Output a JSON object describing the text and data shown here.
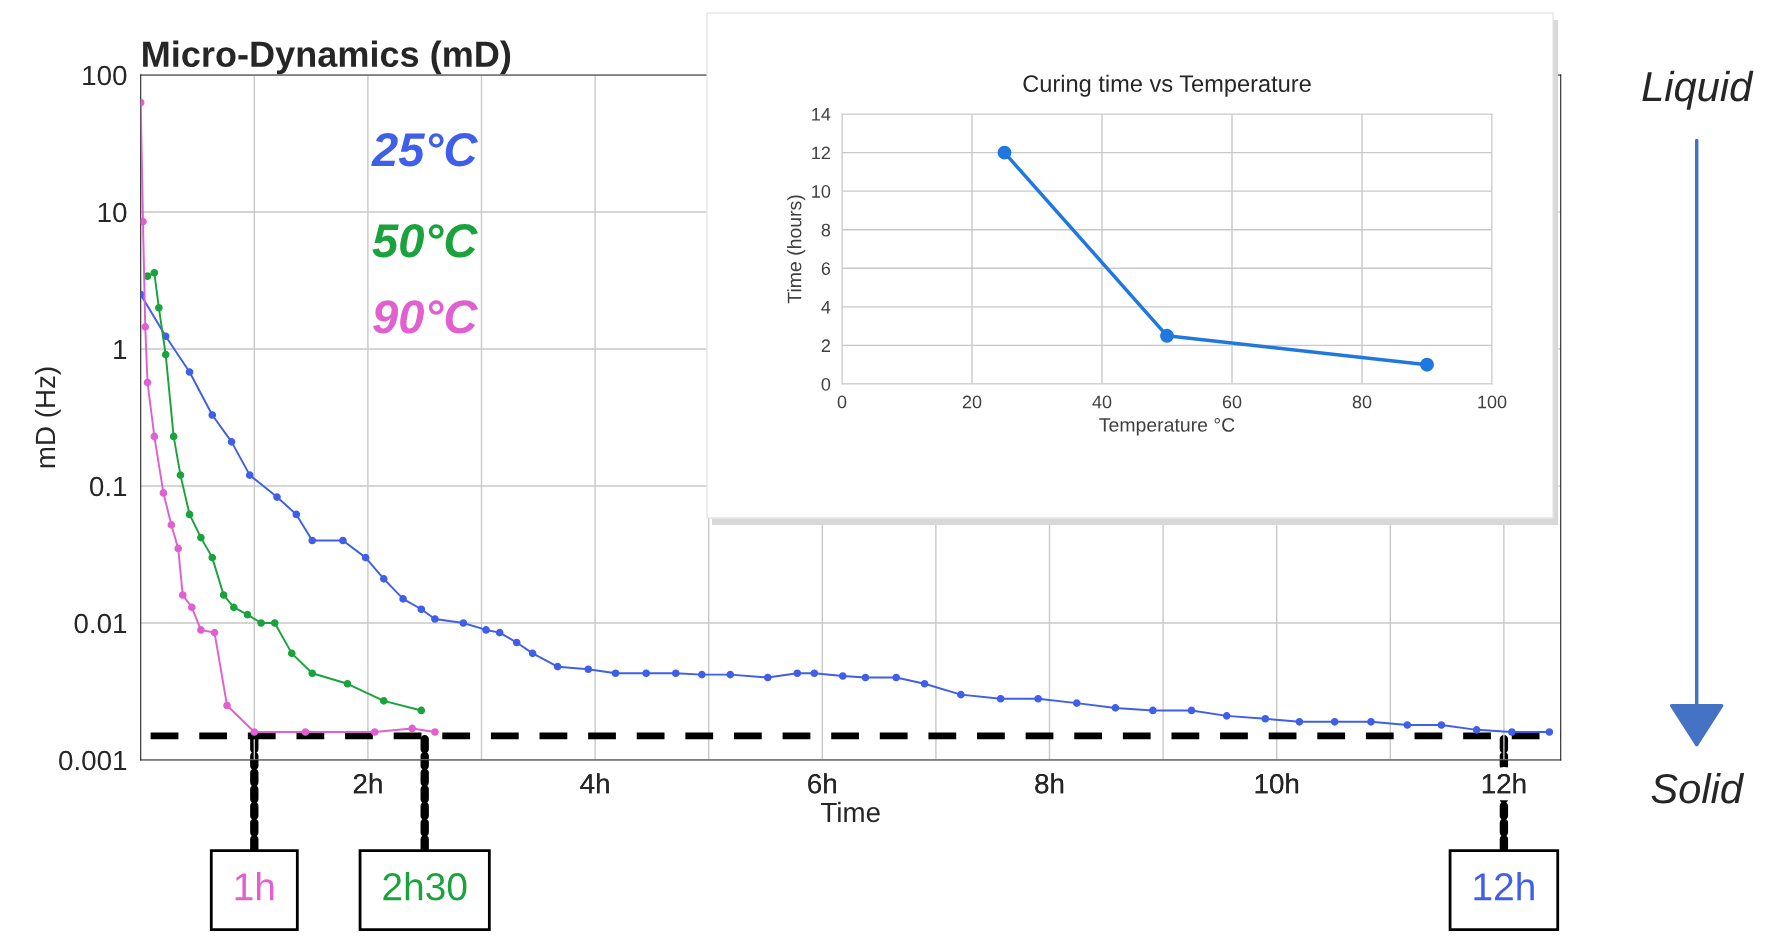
{
  "chart_data": [
    {
      "type": "line",
      "title": "Micro-Dynamics (mD)",
      "xlabel": "Time",
      "ylabel": "mD (Hz)",
      "log": "y",
      "xlim": [
        0,
        12.5
      ],
      "xticks": [
        {
          "value": 1,
          "label": null
        },
        {
          "value": 2,
          "label": "2h"
        },
        {
          "value": 3,
          "label": null
        },
        {
          "value": 4,
          "label": "4h"
        },
        {
          "value": 5,
          "label": null
        },
        {
          "value": 6,
          "label": "6h"
        },
        {
          "value": 7,
          "label": null
        },
        {
          "value": 8,
          "label": "8h"
        },
        {
          "value": 9,
          "label": null
        },
        {
          "value": 10,
          "label": "10h"
        },
        {
          "value": 11,
          "label": null
        },
        {
          "value": 12,
          "label": "12h"
        }
      ],
      "ylim": [
        0.001,
        100
      ],
      "yticks": [
        0.001,
        0.01,
        0.1,
        1,
        10,
        100
      ],
      "grid": true,
      "legend": false,
      "marker": "circle",
      "line_style": "solid",
      "series": [
        {
          "name": "25°C",
          "color": "#3f5fe8",
          "x": [
            0,
            0.22,
            0.43,
            0.63,
            0.8,
            0.96,
            1.2,
            1.37,
            1.51,
            1.78,
            1.98,
            2.14,
            2.31,
            2.47,
            2.59,
            2.84,
            3.04,
            3.16,
            3.31,
            3.45,
            3.67,
            3.94,
            4.18,
            4.45,
            4.71,
            4.94,
            5.19,
            5.52,
            5.78,
            5.93,
            6.18,
            6.38,
            6.65,
            6.9,
            7.22,
            7.57,
            7.9,
            8.24,
            8.58,
            8.91,
            9.25,
            9.56,
            9.9,
            10.2,
            10.51,
            10.83,
            11.15,
            11.45,
            11.76,
            12.07,
            12.4
          ],
          "values": [
            2.5,
            1.24,
            0.68,
            0.33,
            0.21,
            0.12,
            0.083,
            0.062,
            0.04,
            0.04,
            0.03,
            0.021,
            0.015,
            0.0126,
            0.0107,
            0.01,
            0.0089,
            0.0085,
            0.0072,
            0.006,
            0.0048,
            0.0046,
            0.0043,
            0.0043,
            0.0043,
            0.0042,
            0.0042,
            0.004,
            0.0043,
            0.0043,
            0.0041,
            0.004,
            0.004,
            0.0036,
            0.003,
            0.0028,
            0.0028,
            0.0026,
            0.0024,
            0.0023,
            0.0023,
            0.0021,
            0.002,
            0.0019,
            0.0019,
            0.0019,
            0.0018,
            0.0018,
            0.00166,
            0.0016,
            0.0016
          ]
        },
        {
          "name": "50°C",
          "color": "#1aa33c",
          "x": [
            0.06,
            0.12,
            0.16,
            0.22,
            0.29,
            0.35,
            0.43,
            0.53,
            0.63,
            0.73,
            0.82,
            0.94,
            1.06,
            1.18,
            1.33,
            1.51,
            1.82,
            2.14,
            2.47
          ],
          "values": [
            3.4,
            3.6,
            2.0,
            0.91,
            0.23,
            0.12,
            0.062,
            0.042,
            0.03,
            0.016,
            0.013,
            0.0115,
            0.01,
            0.01,
            0.006,
            0.0043,
            0.0036,
            0.0027,
            0.0023
          ]
        },
        {
          "name": "90°C",
          "color": "#e060d0",
          "x": [
            0,
            0.02,
            0.04,
            0.06,
            0.12,
            0.2,
            0.27,
            0.33,
            0.37,
            0.45,
            0.53,
            0.65,
            0.76,
            1.0,
            1.45,
            2.06,
            2.39,
            2.59
          ],
          "values": [
            63,
            8.5,
            1.45,
            0.57,
            0.23,
            0.089,
            0.052,
            0.035,
            0.016,
            0.013,
            0.0089,
            0.0085,
            0.0025,
            0.0016,
            0.0016,
            0.0016,
            0.0017,
            0.0016
          ]
        }
      ],
      "ref_lines": [
        {
          "axis": "y",
          "value": 0.0015,
          "color": "#000000",
          "line_style": "dashed"
        }
      ],
      "annotations": [
        {
          "text": "12h",
          "x": 12,
          "y": 0.0015
        },
        {
          "text": "2h30",
          "x": 2.5,
          "y": 0.0015
        },
        {
          "text": "1h",
          "x": 1,
          "y": 0.0015
        },
        "Liquid",
        "Solid"
      ]
    },
    {
      "type": "line",
      "title": "Curing time vs Temperature",
      "xlabel": "Temperature °C",
      "ylabel": "Time (hours)",
      "x": [
        25,
        50,
        90
      ],
      "values": [
        12,
        2.5,
        1
      ],
      "color": "#1f78e0",
      "marker": "circle",
      "xlim": [
        0,
        100
      ],
      "xticks": [
        0,
        20,
        40,
        60,
        80,
        100
      ],
      "ylim": [
        0,
        14
      ],
      "yticks": [
        0,
        2,
        4,
        6,
        8,
        10,
        12,
        14
      ],
      "grid": true
    }
  ]
}
